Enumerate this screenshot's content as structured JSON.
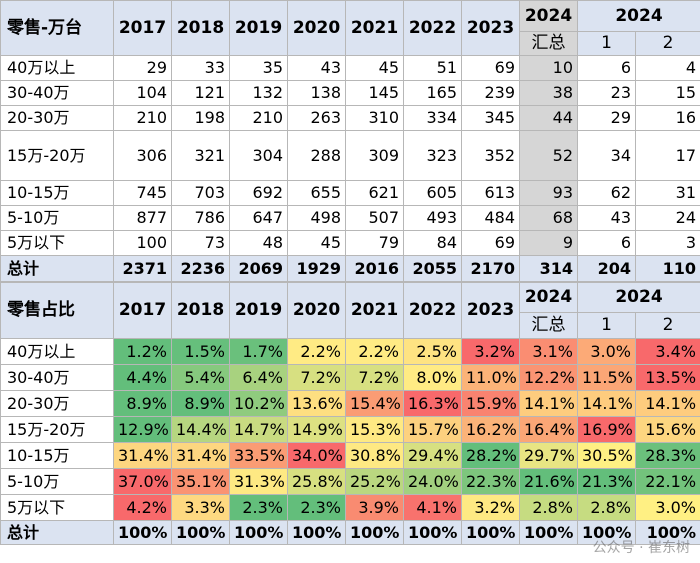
{
  "retail": {
    "title": "零售-万台",
    "years": [
      "2017",
      "2018",
      "2019",
      "2020",
      "2021",
      "2022",
      "2023"
    ],
    "y2024_total_year": "2024",
    "y2024_total_label": "汇总",
    "y2024_months_year": "2024",
    "months": [
      "1",
      "2"
    ],
    "rows": [
      {
        "label": "40万以上",
        "values": [
          "29",
          "33",
          "35",
          "43",
          "45",
          "51",
          "69"
        ],
        "agg": "10",
        "m": [
          "6",
          "4"
        ]
      },
      {
        "label": "30-40万",
        "values": [
          "104",
          "121",
          "132",
          "138",
          "145",
          "165",
          "239"
        ],
        "agg": "38",
        "m": [
          "23",
          "15"
        ]
      },
      {
        "label": "20-30万",
        "values": [
          "210",
          "198",
          "210",
          "263",
          "310",
          "334",
          "345"
        ],
        "agg": "44",
        "m": [
          "29",
          "16"
        ]
      },
      {
        "label": "15万-20万",
        "values": [
          "306",
          "321",
          "304",
          "288",
          "309",
          "323",
          "352"
        ],
        "agg": "52",
        "m": [
          "34",
          "17"
        ]
      },
      {
        "label": "10-15万",
        "values": [
          "745",
          "703",
          "692",
          "655",
          "621",
          "605",
          "613"
        ],
        "agg": "93",
        "m": [
          "62",
          "31"
        ]
      },
      {
        "label": "5-10万",
        "values": [
          "877",
          "786",
          "647",
          "498",
          "507",
          "493",
          "484"
        ],
        "agg": "68",
        "m": [
          "43",
          "24"
        ]
      },
      {
        "label": "5万以下",
        "values": [
          "100",
          "73",
          "48",
          "45",
          "79",
          "84",
          "69"
        ],
        "agg": "9",
        "m": [
          "6",
          "3"
        ]
      }
    ],
    "total": {
      "label": "总计",
      "values": [
        "2371",
        "2236",
        "2069",
        "1929",
        "2016",
        "2055",
        "2170"
      ],
      "agg": "314",
      "m": [
        "204",
        "110"
      ]
    }
  },
  "share": {
    "title": "零售占比",
    "years": [
      "2017",
      "2018",
      "2019",
      "2020",
      "2021",
      "2022",
      "2023"
    ],
    "y2024_total_year": "2024",
    "y2024_total_label": "汇总",
    "y2024_months_year": "2024",
    "months": [
      "1",
      "2"
    ],
    "rows": [
      {
        "label": "40万以上",
        "cells": [
          [
            "1.2%",
            "#63be7b"
          ],
          [
            "1.5%",
            "#66bf7c"
          ],
          [
            "1.7%",
            "#6ac07c"
          ],
          [
            "2.2%",
            "#ffeb84"
          ],
          [
            "2.2%",
            "#ffeb84"
          ],
          [
            "2.5%",
            "#fee382"
          ],
          [
            "3.2%",
            "#f8696b"
          ],
          [
            "3.1%",
            "#fa8d72"
          ],
          [
            "3.0%",
            "#fcaa77"
          ],
          [
            "3.4%",
            "#f8696b"
          ]
        ]
      },
      {
        "label": "30-40万",
        "cells": [
          [
            "4.4%",
            "#63be7b"
          ],
          [
            "5.4%",
            "#86c97e"
          ],
          [
            "6.4%",
            "#a8d27f"
          ],
          [
            "7.2%",
            "#d7e081"
          ],
          [
            "7.2%",
            "#d7e081"
          ],
          [
            "8.0%",
            "#ffeb84"
          ],
          [
            "11.0%",
            "#fcb378"
          ],
          [
            "12.2%",
            "#fa9473"
          ],
          [
            "11.5%",
            "#fba676"
          ],
          [
            "13.5%",
            "#f8696b"
          ]
        ]
      },
      {
        "label": "20-30万",
        "cells": [
          [
            "8.9%",
            "#63be7b"
          ],
          [
            "8.9%",
            "#63be7b"
          ],
          [
            "10.2%",
            "#8fcb7e"
          ],
          [
            "13.6%",
            "#fedf81"
          ],
          [
            "15.4%",
            "#fa9c74"
          ],
          [
            "16.3%",
            "#f8696b"
          ],
          [
            "15.9%",
            "#f98370"
          ],
          [
            "14.1%",
            "#fecc7e"
          ],
          [
            "14.1%",
            "#fecc7e"
          ],
          [
            "14.1%",
            "#fecc7e"
          ]
        ]
      },
      {
        "label": "15万-20万",
        "cells": [
          [
            "12.9%",
            "#63be7b"
          ],
          [
            "14.4%",
            "#b6d680"
          ],
          [
            "14.7%",
            "#c9db81"
          ],
          [
            "14.9%",
            "#dde182"
          ],
          [
            "15.3%",
            "#fee983"
          ],
          [
            "15.7%",
            "#fdd17f"
          ],
          [
            "16.2%",
            "#fbb379"
          ],
          [
            "16.4%",
            "#fba676"
          ],
          [
            "16.9%",
            "#f8696b"
          ],
          [
            "15.6%",
            "#fdd680"
          ]
        ]
      },
      {
        "label": "10-15万",
        "cells": [
          [
            "31.4%",
            "#fdd680"
          ],
          [
            "31.4%",
            "#fdd680"
          ],
          [
            "33.5%",
            "#fa9c74"
          ],
          [
            "34.0%",
            "#f8696b"
          ],
          [
            "30.8%",
            "#fee983"
          ],
          [
            "29.4%",
            "#d7e081"
          ],
          [
            "28.2%",
            "#63be7b"
          ],
          [
            "29.7%",
            "#e8e583"
          ],
          [
            "30.5%",
            "#fff083"
          ],
          [
            "28.3%",
            "#6bc07c"
          ]
        ]
      },
      {
        "label": "5-10万",
        "cells": [
          [
            "37.0%",
            "#f8696b"
          ],
          [
            "35.1%",
            "#fa9473"
          ],
          [
            "31.3%",
            "#fee983"
          ],
          [
            "25.8%",
            "#d7e081"
          ],
          [
            "25.2%",
            "#bad780"
          ],
          [
            "24.0%",
            "#a2d07f"
          ],
          [
            "22.3%",
            "#7dc67d"
          ],
          [
            "21.6%",
            "#63be7b"
          ],
          [
            "21.3%",
            "#63be7b"
          ],
          [
            "22.1%",
            "#73c37c"
          ]
        ]
      },
      {
        "label": "5万以下",
        "cells": [
          [
            "4.2%",
            "#f8696b"
          ],
          [
            "3.3%",
            "#fed981"
          ],
          [
            "2.3%",
            "#63be7b"
          ],
          [
            "2.3%",
            "#63be7b"
          ],
          [
            "3.9%",
            "#f98b71"
          ],
          [
            "4.1%",
            "#f8726d"
          ],
          [
            "3.2%",
            "#fee983"
          ],
          [
            "2.8%",
            "#c6dc81"
          ],
          [
            "2.8%",
            "#c6dc81"
          ],
          [
            "3.0%",
            "#fff083"
          ]
        ]
      }
    ],
    "total": {
      "label": "总计",
      "values": [
        "100%",
        "100%",
        "100%",
        "100%",
        "100%",
        "100%",
        "100%",
        "100%",
        "100%",
        "100%"
      ]
    }
  },
  "watermark": "公众号 · 崔东树"
}
